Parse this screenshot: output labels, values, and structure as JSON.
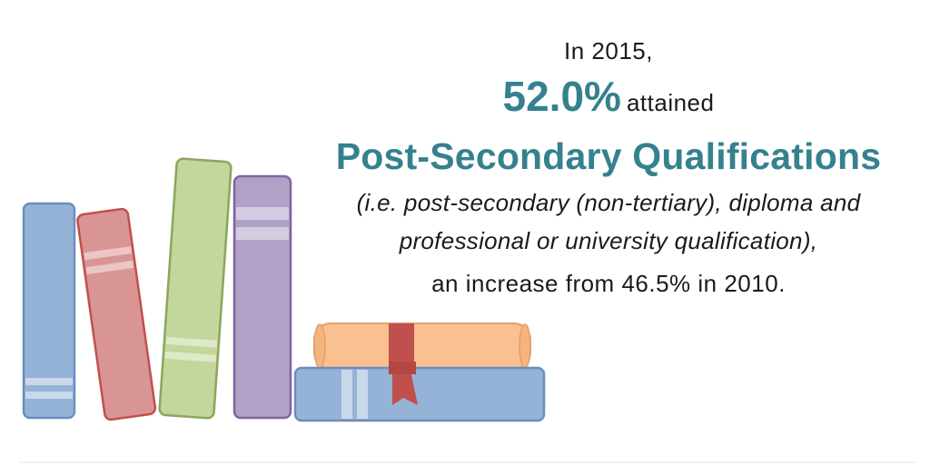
{
  "intro": "In 2015,",
  "stat": {
    "value": "52.0%",
    "suffix": "attained"
  },
  "headline": "Post-Secondary Qualifications",
  "note_lines": [
    "(i.e. post-secondary (non-tertiary), diploma and",
    "professional or university qualification),"
  ],
  "change": "an increase from 46.5% in 2010.",
  "colors": {
    "accent": "#35818e",
    "book_blue": "#95b3d7",
    "book_red": "#d99594",
    "book_green": "#c3d69b",
    "book_purple": "#b2a1c7",
    "scroll": "#fac090",
    "ribbon": "#c0504d"
  },
  "icons": [
    "book-icon",
    "diploma-scroll-icon",
    "ribbon-icon"
  ]
}
